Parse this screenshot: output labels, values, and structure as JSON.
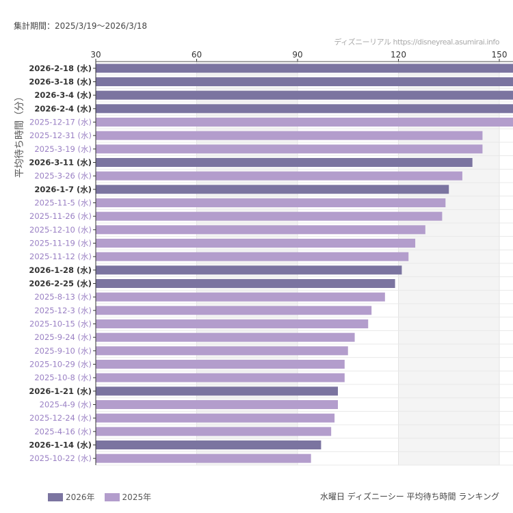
{
  "period_label": "集計期間：2025/3/19〜2026/3/18",
  "credit": "ディズニーリアル https://disneyreal.asumirai.info",
  "chart_data": {
    "type": "bar",
    "orientation": "horizontal",
    "title": "水曜日 ディズニーシー 平均待ち時間 ランキング",
    "ylabel": "平均待ち時間（分）",
    "xlabel": "",
    "xlim": [
      30,
      150
    ],
    "xticks": [
      30,
      60,
      90,
      120,
      150
    ],
    "grid": true,
    "legend_position": "bottom-left",
    "legend": [
      {
        "name": "2026年",
        "color": "#7b74a0"
      },
      {
        "name": "2025年",
        "color": "#b39dcc"
      }
    ],
    "colors": {
      "2026": "#7b74a0",
      "2025": "#b39dcc",
      "label2026": "#333333",
      "label2025": "#9a80c4"
    },
    "categories": [
      "2026-2-18 (水)",
      "2026-3-18 (水)",
      "2026-3-4 (水)",
      "2026-2-4 (水)",
      "2025-12-17 (水)",
      "2025-12-31 (水)",
      "2025-3-19 (水)",
      "2026-3-11 (水)",
      "2025-3-26 (水)",
      "2026-1-7 (水)",
      "2025-11-5 (水)",
      "2025-11-26 (水)",
      "2025-12-10 (水)",
      "2025-11-19 (水)",
      "2025-11-12 (水)",
      "2026-1-28 (水)",
      "2026-2-25 (水)",
      "2025-8-13 (水)",
      "2025-12-3 (水)",
      "2025-10-15 (水)",
      "2025-9-24 (水)",
      "2025-9-10 (水)",
      "2025-10-29 (水)",
      "2025-10-8 (水)",
      "2026-1-21 (水)",
      "2025-4-9 (水)",
      "2025-12-24 (水)",
      "2025-4-16 (水)",
      "2026-1-14 (水)",
      "2025-10-22 (水)"
    ],
    "years": [
      "2026",
      "2026",
      "2026",
      "2026",
      "2025",
      "2025",
      "2025",
      "2026",
      "2025",
      "2026",
      "2025",
      "2025",
      "2025",
      "2025",
      "2025",
      "2026",
      "2026",
      "2025",
      "2025",
      "2025",
      "2025",
      "2025",
      "2025",
      "2025",
      "2026",
      "2025",
      "2025",
      "2025",
      "2026",
      "2025"
    ],
    "values": [
      155,
      155,
      155,
      155,
      155,
      145,
      145,
      142,
      139,
      135,
      134,
      133,
      128,
      125,
      123,
      121,
      119,
      116,
      112,
      111,
      107,
      105,
      104,
      104,
      102,
      102,
      101,
      100,
      97,
      94
    ]
  }
}
